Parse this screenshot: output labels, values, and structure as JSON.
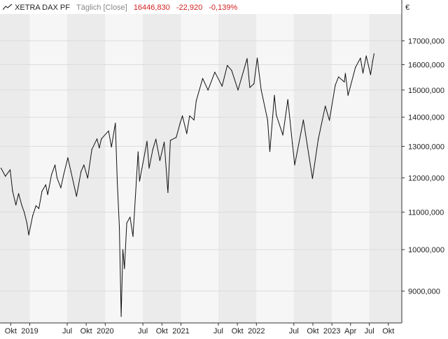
{
  "legend": {
    "symbol": "XETRA DAX PF",
    "interval": "Täglich [Close]",
    "last": "16446,830",
    "change": "-22,920",
    "change_pct": "-0,139%",
    "icon": "line-chart-icon"
  },
  "currency": "€",
  "colors": {
    "line": "#111111",
    "band_dark": "#ebebeb",
    "band_light": "#f6f6f6",
    "grid": "#dcdcdc",
    "axis": "#333333",
    "negative": "#d22020"
  },
  "chart_data": {
    "type": "line",
    "series": [
      {
        "values": [
          [
            "2018-08-15",
            12300
          ],
          [
            "2018-09-05",
            12050
          ],
          [
            "2018-09-28",
            12250
          ],
          [
            "2018-10-10",
            11600
          ],
          [
            "2018-10-26",
            11200
          ],
          [
            "2018-11-08",
            11530
          ],
          [
            "2018-11-23",
            11200
          ],
          [
            "2018-12-05",
            11000
          ],
          [
            "2018-12-18",
            10700
          ],
          [
            "2018-12-27",
            10380
          ],
          [
            "2019-01-15",
            10900
          ],
          [
            "2019-01-31",
            11180
          ],
          [
            "2019-02-14",
            11100
          ],
          [
            "2019-03-01",
            11600
          ],
          [
            "2019-03-19",
            11790
          ],
          [
            "2019-03-29",
            11500
          ],
          [
            "2019-04-16",
            12100
          ],
          [
            "2019-05-03",
            12400
          ],
          [
            "2019-05-13",
            12000
          ],
          [
            "2019-05-31",
            11700
          ],
          [
            "2019-06-14",
            12100
          ],
          [
            "2019-07-04",
            12630
          ],
          [
            "2019-07-19",
            12200
          ],
          [
            "2019-08-15",
            11450
          ],
          [
            "2019-09-06",
            12200
          ],
          [
            "2019-09-20",
            12400
          ],
          [
            "2019-10-08",
            11990
          ],
          [
            "2019-10-28",
            12900
          ],
          [
            "2019-11-22",
            13250
          ],
          [
            "2019-12-03",
            12950
          ],
          [
            "2019-12-13",
            13250
          ],
          [
            "2020-01-17",
            13520
          ],
          [
            "2020-01-31",
            12980
          ],
          [
            "2020-02-19",
            13790
          ],
          [
            "2020-02-28",
            11900
          ],
          [
            "2020-03-09",
            10600
          ],
          [
            "2020-03-18",
            8440
          ],
          [
            "2020-03-26",
            10000
          ],
          [
            "2020-04-03",
            9530
          ],
          [
            "2020-04-14",
            10700
          ],
          [
            "2020-04-30",
            10860
          ],
          [
            "2020-05-14",
            10340
          ],
          [
            "2020-06-08",
            12820
          ],
          [
            "2020-06-15",
            11900
          ],
          [
            "2020-07-21",
            13170
          ],
          [
            "2020-07-31",
            12300
          ],
          [
            "2020-08-18",
            12900
          ],
          [
            "2020-09-02",
            13240
          ],
          [
            "2020-09-21",
            12540
          ],
          [
            "2020-10-12",
            13140
          ],
          [
            "2020-10-30",
            11560
          ],
          [
            "2020-11-11",
            13200
          ],
          [
            "2020-12-09",
            13300
          ],
          [
            "2020-12-28",
            13790
          ],
          [
            "2021-01-08",
            14050
          ],
          [
            "2021-01-29",
            13430
          ],
          [
            "2021-02-12",
            14050
          ],
          [
            "2021-03-05",
            13900
          ],
          [
            "2021-03-16",
            14600
          ],
          [
            "2021-04-16",
            15450
          ],
          [
            "2021-05-12",
            15000
          ],
          [
            "2021-06-14",
            15700
          ],
          [
            "2021-07-19",
            15150
          ],
          [
            "2021-08-13",
            15970
          ],
          [
            "2021-09-03",
            15770
          ],
          [
            "2021-10-04",
            15000
          ],
          [
            "2021-11-17",
            16250
          ],
          [
            "2021-11-30",
            15100
          ],
          [
            "2021-12-20",
            15240
          ],
          [
            "2022-01-05",
            16270
          ],
          [
            "2022-01-24",
            15010
          ],
          [
            "2022-02-24",
            13900
          ],
          [
            "2022-03-07",
            12830
          ],
          [
            "2022-03-29",
            14800
          ],
          [
            "2022-04-07",
            14080
          ],
          [
            "2022-05-09",
            13380
          ],
          [
            "2022-06-02",
            14640
          ],
          [
            "2022-06-24",
            13100
          ],
          [
            "2022-07-05",
            12400
          ],
          [
            "2022-08-16",
            13900
          ],
          [
            "2022-09-29",
            11980
          ],
          [
            "2022-10-27",
            13240
          ],
          [
            "2022-11-30",
            14400
          ],
          [
            "2022-12-20",
            13890
          ],
          [
            "2023-01-17",
            15180
          ],
          [
            "2023-02-02",
            15510
          ],
          [
            "2023-03-02",
            15310
          ],
          [
            "2023-03-07",
            15650
          ],
          [
            "2023-03-20",
            14800
          ],
          [
            "2023-04-25",
            15890
          ],
          [
            "2023-05-19",
            16270
          ],
          [
            "2023-05-31",
            15660
          ],
          [
            "2023-06-16",
            16360
          ],
          [
            "2023-07-07",
            15600
          ],
          [
            "2023-07-17",
            16130
          ],
          [
            "2023-07-24",
            16446.83
          ]
        ]
      }
    ],
    "y_scale": "log",
    "ylim": [
      8300,
      18200
    ],
    "xlim": [
      "2018-08-10",
      "2023-12-05"
    ],
    "y_ticks": [
      9000,
      10000,
      11000,
      12000,
      13000,
      14000,
      15000,
      16000,
      17000
    ],
    "y_tick_labels": [
      "9000,000",
      "10000,000",
      "11000,000",
      "12000,000",
      "13000,000",
      "14000,000",
      "15000,000",
      "16000,000",
      "17000,000"
    ],
    "x_ticks": [
      {
        "date": "2018-10-01",
        "label": "Okt"
      },
      {
        "date": "2019-01-01",
        "label": "2019"
      },
      {
        "date": "2019-07-01",
        "label": "Jul"
      },
      {
        "date": "2019-10-01",
        "label": "Okt"
      },
      {
        "date": "2020-01-01",
        "label": "2020"
      },
      {
        "date": "2020-07-01",
        "label": "Jul"
      },
      {
        "date": "2020-10-01",
        "label": "Okt"
      },
      {
        "date": "2021-01-01",
        "label": "2021"
      },
      {
        "date": "2021-07-01",
        "label": "Jul"
      },
      {
        "date": "2021-10-01",
        "label": "Okt"
      },
      {
        "date": "2022-01-01",
        "label": "2022"
      },
      {
        "date": "2022-07-01",
        "label": "Jul"
      },
      {
        "date": "2022-10-01",
        "label": "Okt"
      },
      {
        "date": "2023-01-01",
        "label": "2023"
      },
      {
        "date": "2023-04-01",
        "label": "Apr"
      },
      {
        "date": "2023-07-01",
        "label": "Jul"
      },
      {
        "date": "2023-10-01",
        "label": "Okt"
      }
    ],
    "bands": [
      "2018-07-01",
      "2019-01-01",
      "2019-07-01",
      "2020-01-01",
      "2020-07-01",
      "2021-01-01",
      "2021-07-01",
      "2022-01-01",
      "2022-07-01",
      "2023-01-01",
      "2023-07-01",
      "2024-01-01"
    ],
    "grid": true,
    "y_axis_position": "right"
  }
}
